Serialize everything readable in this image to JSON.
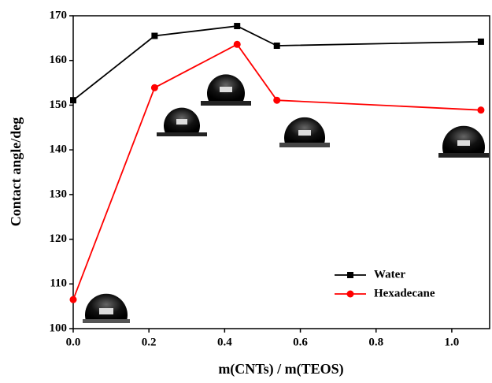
{
  "chart_data": {
    "type": "line",
    "xlabel": "m(CNTs) / m(TEOS)",
    "ylabel": "Contact angle/deg",
    "xlim": [
      0,
      1.1
    ],
    "ylim": [
      100,
      170
    ],
    "xticks": [
      {
        "value": 0,
        "label": "0.0"
      },
      0.2,
      0.4,
      0.6,
      0.8,
      {
        "value": 1,
        "label": "1.0"
      }
    ],
    "yticks": [
      100,
      110,
      120,
      130,
      140,
      150,
      160,
      170
    ],
    "legend": "lower right",
    "series": [
      {
        "name": "Water",
        "color": "#000000",
        "marker": "square",
        "x": [
          0,
          0.215,
          0.433,
          0.538,
          1.077
        ],
        "values": [
          151.1,
          165.5,
          167.7,
          163.3,
          164.2
        ]
      },
      {
        "name": "Hexadecane",
        "color": "#ff0000",
        "marker": "circle",
        "x": [
          0,
          0.215,
          0.433,
          0.538,
          1.077
        ],
        "values": [
          106.5,
          153.9,
          163.6,
          151.1,
          148.9
        ]
      }
    ]
  }
}
